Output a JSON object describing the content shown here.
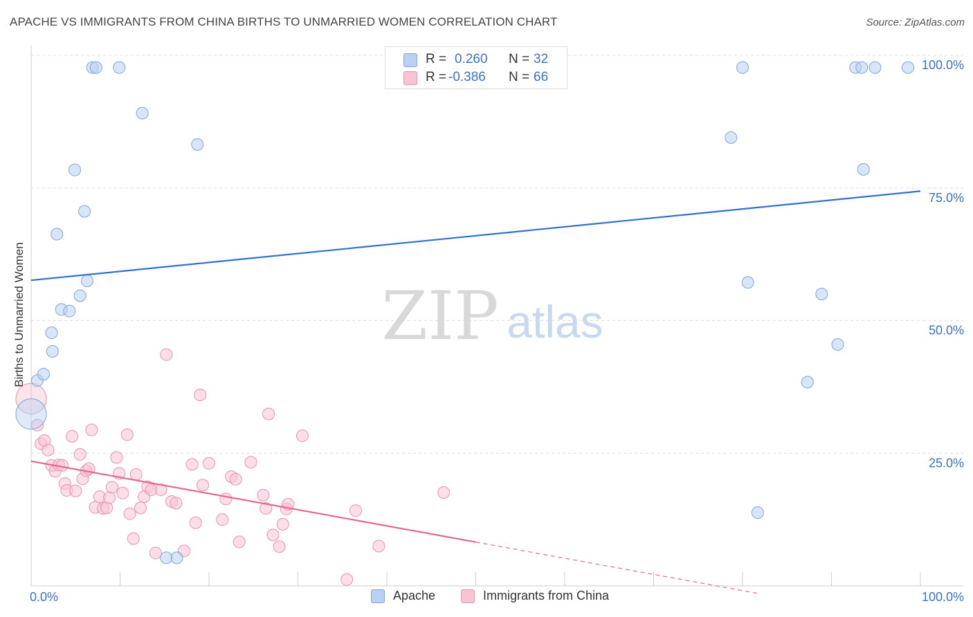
{
  "title": "APACHE VS IMMIGRANTS FROM CHINA BIRTHS TO UNMARRIED WOMEN CORRELATION CHART",
  "source": "Source: ZipAtlas.com",
  "watermark": {
    "zip": "ZIP",
    "atlas": "atlas"
  },
  "legend": {
    "rows": [
      {
        "r_label": "R =",
        "r_value": "0.260",
        "n_label": "N =",
        "n_value": "32"
      },
      {
        "r_label": "R =",
        "r_value": "-0.386",
        "n_label": "N =",
        "n_value": "66"
      }
    ]
  },
  "colors": {
    "apache_fill": "#b9d0f2",
    "apache_stroke": "#7ea6df",
    "apache_line": "#2f6fcf",
    "china_fill": "#f8c3d3",
    "china_stroke": "#ec91af",
    "china_line": "#e3688f",
    "grid": "#dddddd",
    "tick_label": "#3a72c4"
  },
  "chart_data": {
    "type": "scatter",
    "title": "APACHE VS IMMIGRANTS FROM CHINA BIRTHS TO UNMARRIED WOMEN CORRELATION CHART",
    "xlabel": "",
    "ylabel": "Births to Unmarried Women",
    "xlim": [
      0,
      100
    ],
    "ylim": [
      0,
      100
    ],
    "x_tick_labels": [
      "0.0%",
      "100.0%"
    ],
    "y_tick_labels": [
      "25.0%",
      "50.0%",
      "75.0%",
      "100.0%"
    ],
    "y_ticks": [
      25,
      50,
      75,
      100
    ],
    "legend_position": "bottom",
    "series": [
      {
        "name": "Apache",
        "r": 0.26,
        "n": 32,
        "trend": {
          "x": [
            0,
            100
          ],
          "y": [
            57.6,
            74.4
          ],
          "dashed_from": null
        },
        "points": [
          {
            "x": 0.0,
            "y": 32.4,
            "big": true
          },
          {
            "x": 0.7,
            "y": 38.7
          },
          {
            "x": 1.4,
            "y": 39.9
          },
          {
            "x": 2.3,
            "y": 47.7
          },
          {
            "x": 2.4,
            "y": 44.2
          },
          {
            "x": 2.9,
            "y": 66.3
          },
          {
            "x": 3.4,
            "y": 52.1
          },
          {
            "x": 4.3,
            "y": 51.8
          },
          {
            "x": 4.9,
            "y": 78.4
          },
          {
            "x": 5.5,
            "y": 54.7
          },
          {
            "x": 6.0,
            "y": 70.6
          },
          {
            "x": 6.3,
            "y": 57.5
          },
          {
            "x": 6.9,
            "y": 97.7
          },
          {
            "x": 7.3,
            "y": 97.7
          },
          {
            "x": 9.9,
            "y": 97.7
          },
          {
            "x": 12.5,
            "y": 89.1
          },
          {
            "x": 15.2,
            "y": 5.3
          },
          {
            "x": 16.4,
            "y": 5.3
          },
          {
            "x": 18.7,
            "y": 83.2
          },
          {
            "x": 78.7,
            "y": 84.5
          },
          {
            "x": 80.0,
            "y": 97.7
          },
          {
            "x": 80.6,
            "y": 57.2
          },
          {
            "x": 81.7,
            "y": 13.8
          },
          {
            "x": 87.3,
            "y": 38.4
          },
          {
            "x": 88.9,
            "y": 55.0
          },
          {
            "x": 90.7,
            "y": 45.5
          },
          {
            "x": 92.7,
            "y": 97.7
          },
          {
            "x": 93.4,
            "y": 97.7
          },
          {
            "x": 93.6,
            "y": 78.5
          },
          {
            "x": 94.9,
            "y": 97.7
          },
          {
            "x": 98.6,
            "y": 97.7
          }
        ]
      },
      {
        "name": "Immigrants from China",
        "r": -0.386,
        "n": 66,
        "trend": {
          "x": [
            0,
            82
          ],
          "y": [
            23.5,
            -1.5
          ],
          "dashed_from": 50
        },
        "points": [
          {
            "x": 0.0,
            "y": 35.3,
            "big": true
          },
          {
            "x": 0.7,
            "y": 30.3
          },
          {
            "x": 1.1,
            "y": 26.8
          },
          {
            "x": 1.5,
            "y": 27.4
          },
          {
            "x": 1.9,
            "y": 25.6
          },
          {
            "x": 2.3,
            "y": 22.7
          },
          {
            "x": 2.7,
            "y": 21.6
          },
          {
            "x": 3.1,
            "y": 22.8
          },
          {
            "x": 3.5,
            "y": 22.7
          },
          {
            "x": 3.8,
            "y": 19.3
          },
          {
            "x": 4.0,
            "y": 18.0
          },
          {
            "x": 4.6,
            "y": 28.2
          },
          {
            "x": 5.0,
            "y": 17.9
          },
          {
            "x": 5.5,
            "y": 24.8
          },
          {
            "x": 5.8,
            "y": 20.2
          },
          {
            "x": 6.2,
            "y": 21.7
          },
          {
            "x": 6.5,
            "y": 22.1
          },
          {
            "x": 6.8,
            "y": 29.4
          },
          {
            "x": 7.2,
            "y": 14.8
          },
          {
            "x": 7.7,
            "y": 16.8
          },
          {
            "x": 8.1,
            "y": 14.6
          },
          {
            "x": 8.5,
            "y": 14.7
          },
          {
            "x": 8.8,
            "y": 16.6
          },
          {
            "x": 9.1,
            "y": 18.6
          },
          {
            "x": 9.6,
            "y": 24.2
          },
          {
            "x": 9.9,
            "y": 21.2
          },
          {
            "x": 10.3,
            "y": 17.5
          },
          {
            "x": 10.8,
            "y": 28.5
          },
          {
            "x": 11.1,
            "y": 13.6
          },
          {
            "x": 11.5,
            "y": 8.9
          },
          {
            "x": 11.8,
            "y": 21.0
          },
          {
            "x": 12.3,
            "y": 14.7
          },
          {
            "x": 12.7,
            "y": 16.8
          },
          {
            "x": 13.1,
            "y": 18.7
          },
          {
            "x": 13.5,
            "y": 18.1
          },
          {
            "x": 14.0,
            "y": 6.2
          },
          {
            "x": 14.6,
            "y": 18.1
          },
          {
            "x": 15.2,
            "y": 43.6
          },
          {
            "x": 15.8,
            "y": 15.9
          },
          {
            "x": 16.3,
            "y": 15.6
          },
          {
            "x": 17.2,
            "y": 6.6
          },
          {
            "x": 18.1,
            "y": 22.9
          },
          {
            "x": 18.5,
            "y": 11.9
          },
          {
            "x": 19.0,
            "y": 36.0
          },
          {
            "x": 19.3,
            "y": 19.0
          },
          {
            "x": 20.0,
            "y": 23.1
          },
          {
            "x": 21.5,
            "y": 12.5
          },
          {
            "x": 21.9,
            "y": 16.4
          },
          {
            "x": 22.5,
            "y": 20.6
          },
          {
            "x": 23.0,
            "y": 20.1
          },
          {
            "x": 23.4,
            "y": 8.3
          },
          {
            "x": 24.7,
            "y": 23.3
          },
          {
            "x": 26.1,
            "y": 17.1
          },
          {
            "x": 26.4,
            "y": 14.6
          },
          {
            "x": 26.7,
            "y": 32.4
          },
          {
            "x": 27.2,
            "y": 9.6
          },
          {
            "x": 27.9,
            "y": 7.4
          },
          {
            "x": 28.3,
            "y": 11.6
          },
          {
            "x": 28.7,
            "y": 14.5
          },
          {
            "x": 28.9,
            "y": 15.4
          },
          {
            "x": 30.5,
            "y": 28.3
          },
          {
            "x": 35.5,
            "y": 1.2
          },
          {
            "x": 36.5,
            "y": 14.2
          },
          {
            "x": 39.1,
            "y": 7.5
          },
          {
            "x": 46.4,
            "y": 17.6
          }
        ]
      }
    ]
  }
}
